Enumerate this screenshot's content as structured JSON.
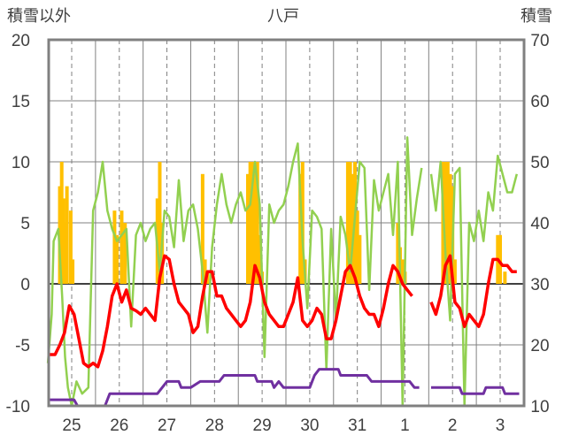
{
  "chart_data": {
    "type": "line",
    "title": "八戸",
    "ylabel_left": "積雪以外",
    "ylabel_right": "積雪",
    "ylim_left": [
      -10,
      20
    ],
    "ylim_right": [
      10,
      70
    ],
    "yticks_left": [
      -10,
      -5,
      0,
      5,
      10,
      15,
      20
    ],
    "yticks_right": [
      10,
      20,
      30,
      40,
      50,
      60,
      70
    ],
    "x_range": [
      0,
      9.5
    ],
    "day_labels": [
      {
        "x": 0.5,
        "label": "25"
      },
      {
        "x": 1.5,
        "label": "26"
      },
      {
        "x": 2.5,
        "label": "27"
      },
      {
        "x": 3.5,
        "label": "28"
      },
      {
        "x": 4.5,
        "label": "29"
      },
      {
        "x": 5.5,
        "label": "30"
      },
      {
        "x": 6.5,
        "label": "31"
      },
      {
        "x": 7.5,
        "label": "1"
      },
      {
        "x": 8.5,
        "label": "2"
      },
      {
        "x": 9.5,
        "label": "3"
      }
    ],
    "colors": {
      "precip": "#FFC000",
      "temperature": "#FF0000",
      "humidity_line": "#92D050",
      "snow_depth": "#7030A0",
      "grid": "#808080",
      "frame": "#808080"
    },
    "series": [
      {
        "kind": "bar",
        "axis": "left",
        "color": "#FFC000",
        "points": [
          [
            0.25,
            8
          ],
          [
            0.29,
            10
          ],
          [
            0.33,
            7
          ],
          [
            0.37,
            5
          ],
          [
            0.4,
            8
          ],
          [
            0.48,
            6
          ],
          [
            0.52,
            2
          ],
          [
            1.4,
            6
          ],
          [
            1.45,
            4
          ],
          [
            1.55,
            6
          ],
          [
            1.62,
            5
          ],
          [
            2.3,
            7
          ],
          [
            2.35,
            10
          ],
          [
            2.4,
            5
          ],
          [
            3.25,
            9
          ],
          [
            3.3,
            2
          ],
          [
            3.35,
            1
          ],
          [
            4.2,
            9
          ],
          [
            4.25,
            10
          ],
          [
            4.3,
            10
          ],
          [
            4.35,
            10
          ],
          [
            4.4,
            10
          ],
          [
            4.45,
            4
          ],
          [
            4.5,
            1
          ],
          [
            5.3,
            9
          ],
          [
            5.35,
            10
          ],
          [
            5.4,
            2
          ],
          [
            6.3,
            10
          ],
          [
            6.35,
            10
          ],
          [
            6.4,
            9
          ],
          [
            6.45,
            10
          ],
          [
            6.5,
            6
          ],
          [
            6.55,
            4
          ],
          [
            7.35,
            5
          ],
          [
            7.4,
            3
          ],
          [
            7.45,
            2
          ],
          [
            7.5,
            1
          ],
          [
            8.3,
            10
          ],
          [
            8.35,
            10
          ],
          [
            8.4,
            10
          ],
          [
            8.45,
            9
          ],
          [
            8.5,
            8
          ],
          [
            8.55,
            2
          ],
          [
            9.45,
            4
          ],
          [
            9.5,
            4
          ],
          [
            9.6,
            1
          ]
        ]
      },
      {
        "kind": "line",
        "axis": "left",
        "color": "#92D050",
        "points": [
          [
            0.0,
            -6.5
          ],
          [
            0.08,
            -2.5
          ],
          [
            0.12,
            3.5
          ],
          [
            0.22,
            4.5
          ],
          [
            0.3,
            -1.0
          ],
          [
            0.36,
            -6.0
          ],
          [
            0.42,
            -8.5
          ],
          [
            0.5,
            -10.0
          ],
          [
            0.6,
            -8.0
          ],
          [
            0.72,
            -9.0
          ],
          [
            0.85,
            -8.5
          ],
          [
            0.95,
            6.0
          ],
          [
            1.05,
            7.5
          ],
          [
            1.15,
            10.0
          ],
          [
            1.25,
            6.0
          ],
          [
            1.35,
            4.5
          ],
          [
            1.45,
            3.5
          ],
          [
            1.55,
            4.0
          ],
          [
            1.65,
            4.5
          ],
          [
            1.75,
            -3.5
          ],
          [
            1.85,
            4.0
          ],
          [
            1.95,
            5.0
          ],
          [
            2.05,
            3.5
          ],
          [
            2.15,
            4.5
          ],
          [
            2.25,
            5.0
          ],
          [
            2.35,
            1.0
          ],
          [
            2.45,
            6.0
          ],
          [
            2.55,
            5.5
          ],
          [
            2.65,
            3.0
          ],
          [
            2.75,
            8.5
          ],
          [
            2.85,
            3.5
          ],
          [
            2.95,
            6.0
          ],
          [
            3.05,
            6.5
          ],
          [
            3.15,
            4.5
          ],
          [
            3.25,
            1.0
          ],
          [
            3.35,
            -4.0
          ],
          [
            3.45,
            3.0
          ],
          [
            3.55,
            6.5
          ],
          [
            3.65,
            9.0
          ],
          [
            3.75,
            6.5
          ],
          [
            3.85,
            5.0
          ],
          [
            3.95,
            6.5
          ],
          [
            4.05,
            7.5
          ],
          [
            4.15,
            6.0
          ],
          [
            4.25,
            6.5
          ],
          [
            4.35,
            10.0
          ],
          [
            4.45,
            6.5
          ],
          [
            4.55,
            -6.0
          ],
          [
            4.65,
            6.5
          ],
          [
            4.75,
            5.0
          ],
          [
            4.85,
            6.0
          ],
          [
            4.95,
            6.5
          ],
          [
            5.05,
            8.0
          ],
          [
            5.15,
            10.0
          ],
          [
            5.25,
            11.5
          ],
          [
            5.35,
            3.5
          ],
          [
            5.45,
            -2.0
          ],
          [
            5.55,
            6.0
          ],
          [
            5.65,
            5.5
          ],
          [
            5.75,
            4.5
          ],
          [
            5.85,
            -7.0
          ],
          [
            5.95,
            4.5
          ],
          [
            6.05,
            -3.0
          ],
          [
            6.15,
            5.5
          ],
          [
            6.25,
            4.0
          ],
          [
            6.35,
            1.0
          ],
          [
            6.45,
            5.5
          ],
          [
            6.55,
            10.0
          ],
          [
            6.65,
            9.5
          ],
          [
            6.75,
            -0.5
          ],
          [
            6.85,
            8.5
          ],
          [
            6.95,
            6.0
          ],
          [
            7.05,
            7.5
          ],
          [
            7.15,
            9.0
          ],
          [
            7.25,
            4.0
          ],
          [
            7.35,
            10.0
          ],
          [
            7.45,
            -10.0
          ],
          [
            7.55,
            12.0
          ],
          [
            7.65,
            4.0
          ],
          [
            7.75,
            7.0
          ],
          [
            7.85,
            9.5
          ]
        ]
      },
      {
        "kind": "line",
        "axis": "left",
        "color": "#92D050",
        "points": [
          [
            8.05,
            9.0
          ],
          [
            8.15,
            6.0
          ],
          [
            8.25,
            10.0
          ],
          [
            8.35,
            2.5
          ],
          [
            8.45,
            -3.0
          ],
          [
            8.55,
            9.0
          ],
          [
            8.65,
            9.5
          ],
          [
            8.75,
            -10.0
          ],
          [
            8.85,
            5.0
          ],
          [
            8.95,
            3.5
          ],
          [
            9.05,
            6.0
          ],
          [
            9.15,
            3.5
          ],
          [
            9.25,
            7.5
          ],
          [
            9.35,
            6.0
          ],
          [
            9.45,
            10.5
          ],
          [
            9.55,
            9.0
          ],
          [
            9.65,
            7.5
          ],
          [
            9.75,
            7.5
          ],
          [
            9.85,
            9.0
          ]
        ]
      },
      {
        "kind": "line",
        "axis": "left",
        "color": "#FF0000",
        "points": [
          [
            0.0,
            -5.8
          ],
          [
            0.15,
            -5.8
          ],
          [
            0.25,
            -5.0
          ],
          [
            0.35,
            -4.0
          ],
          [
            0.45,
            -1.8
          ],
          [
            0.55,
            -2.5
          ],
          [
            0.65,
            -4.5
          ],
          [
            0.75,
            -6.5
          ],
          [
            0.85,
            -6.8
          ],
          [
            0.95,
            -6.5
          ],
          [
            1.05,
            -6.8
          ],
          [
            1.15,
            -5.5
          ],
          [
            1.25,
            -3.5
          ],
          [
            1.35,
            -1.0
          ],
          [
            1.45,
            0.0
          ],
          [
            1.55,
            -1.5
          ],
          [
            1.65,
            -0.5
          ],
          [
            1.75,
            -2.0
          ],
          [
            1.85,
            -2.2
          ],
          [
            1.95,
            -2.5
          ],
          [
            2.05,
            -2.0
          ],
          [
            2.15,
            -2.5
          ],
          [
            2.25,
            -3.0
          ],
          [
            2.35,
            0.5
          ],
          [
            2.45,
            2.3
          ],
          [
            2.55,
            2.0
          ],
          [
            2.65,
            0.0
          ],
          [
            2.75,
            -1.5
          ],
          [
            2.85,
            -2.0
          ],
          [
            2.95,
            -2.5
          ],
          [
            3.05,
            -4.0
          ],
          [
            3.15,
            -3.5
          ],
          [
            3.25,
            -1.0
          ],
          [
            3.35,
            1.0
          ],
          [
            3.45,
            1.0
          ],
          [
            3.55,
            -1.0
          ],
          [
            3.65,
            -1.0
          ],
          [
            3.75,
            -2.0
          ],
          [
            3.85,
            -2.5
          ],
          [
            3.95,
            -3.0
          ],
          [
            4.05,
            -3.5
          ],
          [
            4.15,
            -3.0
          ],
          [
            4.25,
            -1.5
          ],
          [
            4.35,
            1.5
          ],
          [
            4.45,
            0.5
          ],
          [
            4.55,
            -1.5
          ],
          [
            4.65,
            -2.5
          ],
          [
            4.75,
            -3.0
          ],
          [
            4.85,
            -3.5
          ],
          [
            4.95,
            -3.5
          ],
          [
            5.05,
            -2.5
          ],
          [
            5.15,
            -1.5
          ],
          [
            5.25,
            0.5
          ],
          [
            5.35,
            -3.0
          ],
          [
            5.45,
            -3.5
          ],
          [
            5.55,
            -3.0
          ],
          [
            5.65,
            -2.0
          ],
          [
            5.75,
            -2.5
          ],
          [
            5.85,
            -4.5
          ],
          [
            5.95,
            -4.5
          ],
          [
            6.05,
            -3.0
          ],
          [
            6.15,
            -1.0
          ],
          [
            6.25,
            1.0
          ],
          [
            6.35,
            1.5
          ],
          [
            6.45,
            0.5
          ],
          [
            6.55,
            -1.0
          ],
          [
            6.65,
            -2.0
          ],
          [
            6.75,
            -2.5
          ],
          [
            6.85,
            -2.5
          ],
          [
            6.95,
            -3.5
          ],
          [
            7.05,
            -2.0
          ],
          [
            7.15,
            0.0
          ],
          [
            7.25,
            1.5
          ],
          [
            7.35,
            1.0
          ],
          [
            7.45,
            0.0
          ],
          [
            7.55,
            -0.5
          ],
          [
            7.65,
            -1.0
          ]
        ]
      },
      {
        "kind": "line",
        "axis": "left",
        "color": "#FF0000",
        "points": [
          [
            8.05,
            -1.5
          ],
          [
            8.15,
            -2.5
          ],
          [
            8.25,
            -1.0
          ],
          [
            8.35,
            1.5
          ],
          [
            8.45,
            2.3
          ],
          [
            8.55,
            -1.5
          ],
          [
            8.65,
            -2.0
          ],
          [
            8.75,
            -3.5
          ],
          [
            8.85,
            -2.5
          ],
          [
            8.95,
            -3.0
          ],
          [
            9.05,
            -3.5
          ],
          [
            9.15,
            -2.5
          ],
          [
            9.25,
            0.0
          ],
          [
            9.35,
            2.0
          ],
          [
            9.45,
            2.0
          ],
          [
            9.55,
            1.5
          ],
          [
            9.65,
            1.5
          ],
          [
            9.75,
            1.0
          ],
          [
            9.85,
            1.0
          ]
        ]
      },
      {
        "kind": "line",
        "axis": "right",
        "color": "#7030A0",
        "points": [
          [
            0.0,
            11
          ],
          [
            0.55,
            11
          ],
          [
            0.62,
            10
          ],
          [
            1.2,
            10
          ],
          [
            1.3,
            12
          ],
          [
            2.3,
            12
          ],
          [
            2.4,
            13
          ],
          [
            2.5,
            14
          ],
          [
            2.75,
            14
          ],
          [
            2.8,
            13
          ],
          [
            3.0,
            13
          ],
          [
            3.2,
            14
          ],
          [
            3.4,
            14
          ],
          [
            3.6,
            14
          ],
          [
            3.7,
            15
          ],
          [
            4.35,
            15
          ],
          [
            4.4,
            14
          ],
          [
            4.7,
            14
          ],
          [
            4.75,
            13
          ],
          [
            4.85,
            14
          ],
          [
            4.95,
            13
          ],
          [
            5.5,
            13
          ],
          [
            5.55,
            14
          ],
          [
            5.6,
            15
          ],
          [
            5.7,
            16
          ],
          [
            6.1,
            16
          ],
          [
            6.15,
            15
          ],
          [
            6.7,
            15
          ],
          [
            6.8,
            14
          ],
          [
            7.6,
            14
          ],
          [
            7.7,
            13
          ],
          [
            7.8,
            13
          ]
        ]
      },
      {
        "kind": "line",
        "axis": "right",
        "color": "#7030A0",
        "points": [
          [
            8.05,
            13
          ],
          [
            8.65,
            13
          ],
          [
            8.7,
            12
          ],
          [
            9.15,
            12
          ],
          [
            9.2,
            13
          ],
          [
            9.55,
            13
          ],
          [
            9.6,
            12
          ],
          [
            9.9,
            12
          ]
        ]
      }
    ]
  }
}
